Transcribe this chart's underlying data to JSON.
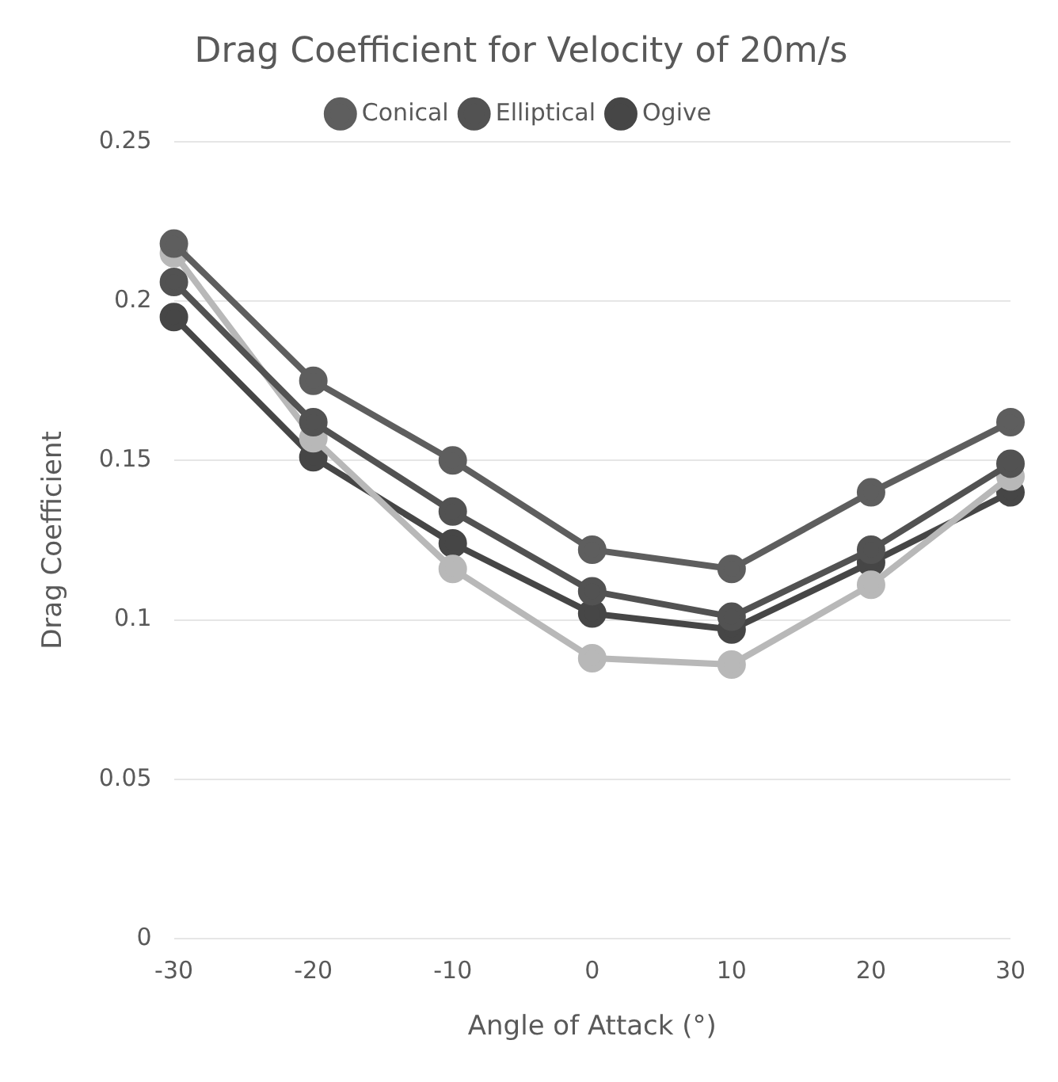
{
  "chart_data": {
    "type": "line",
    "title": "Drag Coefficient for Velocity of 20m/s",
    "xlabel": "Angle of Attack (°)",
    "ylabel": "Drag Coefficient",
    "categories": [
      "-30",
      "-20",
      "-10",
      "0",
      "10",
      "20",
      "30"
    ],
    "series": [
      {
        "name": "Conical",
        "color": "#5e5e5e",
        "values": [
          0.218,
          0.175,
          0.15,
          0.122,
          0.116,
          0.14,
          0.162
        ]
      },
      {
        "name": "Elliptical",
        "color": "#525252",
        "values": [
          0.206,
          0.162,
          0.134,
          0.109,
          0.101,
          0.122,
          0.149
        ]
      },
      {
        "color": "#b8b8b8",
        "values": [
          0.215,
          0.157,
          0.116,
          0.088,
          0.086,
          0.111,
          0.145
        ]
      },
      {
        "name": "Ogive",
        "color": "#464646",
        "values": [
          0.195,
          0.151,
          0.124,
          0.102,
          0.097,
          0.118,
          0.14
        ]
      }
    ],
    "ylim": [
      0,
      0.25
    ],
    "yticks": [
      0,
      0.05,
      0.1,
      0.15,
      0.2,
      0.25
    ],
    "grid": "y",
    "legend": "top",
    "marker": "circle",
    "line_style": "solid"
  }
}
